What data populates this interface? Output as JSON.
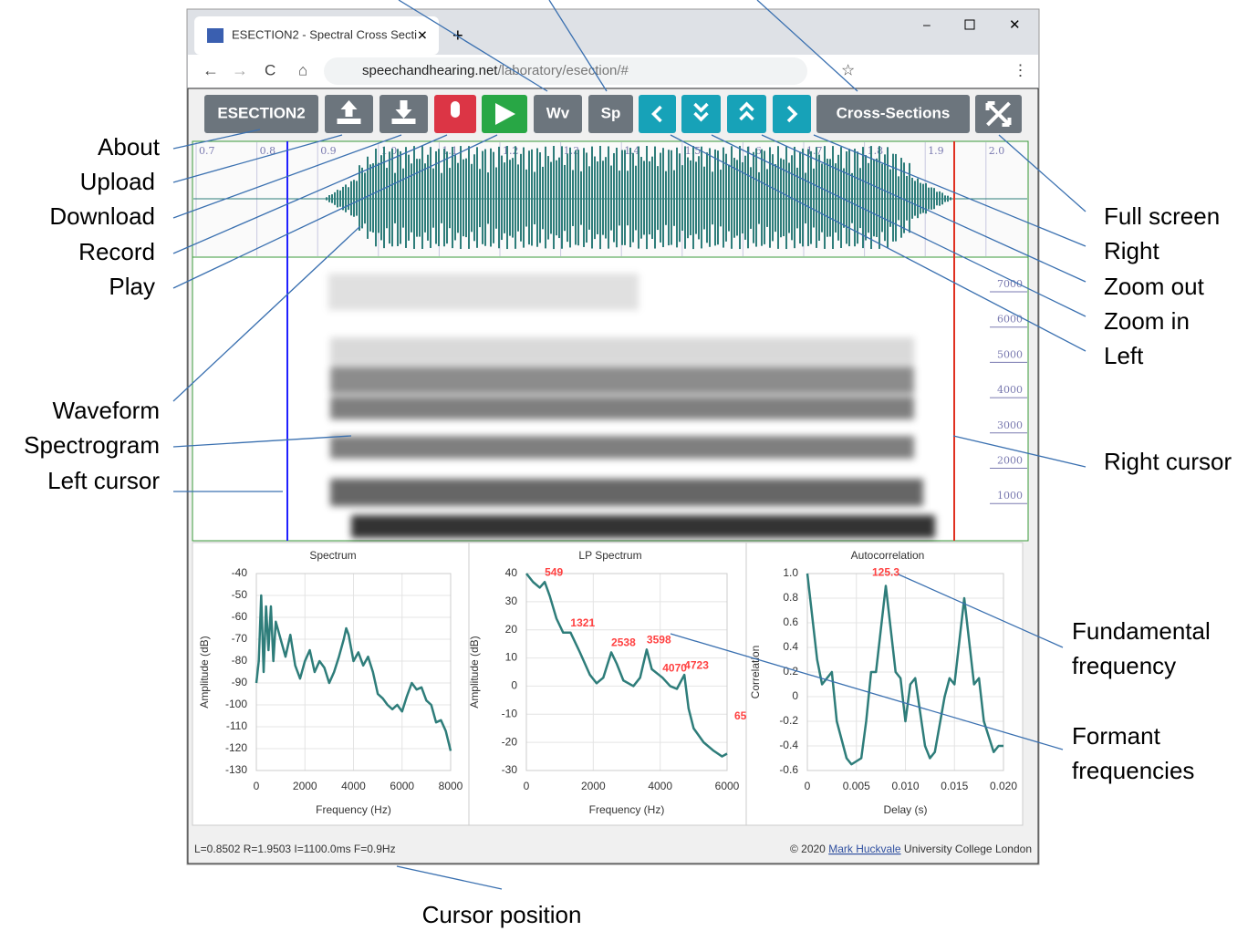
{
  "browser": {
    "tab_title": "ESECTION2 - Spectral Cross Secti",
    "url_host": "speechandhearing.net",
    "url_path": "/laboratory/esection/#"
  },
  "toolbar": {
    "app": "ESECTION2",
    "waveform": "Wv",
    "spectrogram": "Sp",
    "cross_sections": "Cross-Sections"
  },
  "waveform": {
    "time_ticks": [
      "0.7",
      "0.8",
      "0.9",
      "1.0",
      "1.1",
      "1.2",
      "1.3",
      "1.4",
      "1.5",
      "1.6",
      "1.7",
      "1.8",
      "1.9",
      "2.0"
    ]
  },
  "spectrogram": {
    "freq_ticks": [
      "7000",
      "6000",
      "5000",
      "4000",
      "3000",
      "2000",
      "1000"
    ]
  },
  "charts": [
    {
      "type": "line",
      "title": "Spectrum",
      "x_label": "Frequency (Hz)",
      "y_label": "Amplitude (dB)",
      "color": "#2e7d7a",
      "xlim": [
        0,
        8000
      ],
      "ylim": [
        -130,
        -40
      ],
      "xticks": [
        0,
        2000,
        4000,
        6000,
        8000
      ],
      "yticks": [
        -40,
        -50,
        -60,
        -70,
        -80,
        -90,
        -100,
        -110,
        -120,
        -130
      ],
      "x": [
        0,
        100,
        200,
        300,
        400,
        500,
        600,
        700,
        800,
        1000,
        1200,
        1400,
        1600,
        1800,
        2000,
        2200,
        2400,
        2600,
        2800,
        3000,
        3200,
        3400,
        3600,
        3700,
        3800,
        4000,
        4200,
        4400,
        4600,
        4800,
        5000,
        5200,
        5400,
        5600,
        5800,
        6000,
        6200,
        6400,
        6600,
        6800,
        7000,
        7200,
        7400,
        7600,
        7800,
        8000
      ],
      "values": [
        -90,
        -80,
        -50,
        -85,
        -55,
        -75,
        -55,
        -80,
        -62,
        -70,
        -78,
        -68,
        -82,
        -88,
        -80,
        -75,
        -85,
        -80,
        -83,
        -90,
        -85,
        -78,
        -70,
        -65,
        -68,
        -80,
        -76,
        -82,
        -78,
        -85,
        -95,
        -97,
        -100,
        -102,
        -100,
        -103,
        -96,
        -90,
        -93,
        -92,
        -98,
        -100,
        -108,
        -107,
        -112,
        -121
      ]
    },
    {
      "type": "line",
      "title": "LP Spectrum",
      "x_label": "Frequency (Hz)",
      "y_label": "Amplitude (dB)",
      "color": "#2e7d7a",
      "xlim": [
        0,
        6000
      ],
      "ylim": [
        -30,
        40
      ],
      "xticks": [
        0,
        2000,
        4000,
        6000
      ],
      "yticks": [
        40,
        30,
        20,
        10,
        0,
        -10,
        -20,
        -30
      ],
      "x": [
        0,
        200,
        400,
        549,
        700,
        900,
        1100,
        1321,
        1600,
        1900,
        2100,
        2300,
        2538,
        2700,
        2900,
        3200,
        3400,
        3598,
        3750,
        4070,
        4300,
        4500,
        4723,
        4850,
        5000,
        5300,
        5600,
        5850,
        6000
      ],
      "values": [
        40,
        37,
        35,
        37,
        32,
        24,
        19,
        19,
        12,
        4,
        1,
        3,
        12,
        8,
        2,
        0,
        3,
        13,
        6,
        3,
        0,
        -1,
        4,
        -8,
        -15,
        -20,
        -23,
        -25,
        -24
      ],
      "peaks": [
        {
          "x": 549,
          "y": 37
        },
        {
          "x": 1321,
          "y": 19
        },
        {
          "x": 2538,
          "y": 12
        },
        {
          "x": 3598,
          "y": 13
        },
        {
          "x": 4070,
          "y": 3
        },
        {
          "x": 4723,
          "y": 4
        }
      ],
      "clipped_label": "65"
    },
    {
      "type": "line",
      "title": "Autocorrelation",
      "x_label": "Delay (s)",
      "y_label": "Correlation",
      "color": "#2e7d7a",
      "xlim": [
        0,
        0.02
      ],
      "ylim": [
        -0.6,
        1
      ],
      "xticks": [
        0,
        0.005,
        {
          "value": 0.01,
          "label": "0.010"
        },
        0.015,
        {
          "value": 0.02,
          "label": "0.020"
        }
      ],
      "yticks": [
        {
          "value": 1,
          "label": "1.0"
        },
        0.8,
        0.6,
        0.4,
        0.2,
        0,
        -0.2,
        -0.4,
        -0.6
      ],
      "x": [
        0,
        0.001,
        0.0015,
        0.0025,
        0.003,
        0.004,
        0.0045,
        0.0055,
        0.006,
        0.0065,
        0.007,
        0.008,
        0.009,
        0.0095,
        0.01,
        0.0105,
        0.011,
        0.012,
        0.0125,
        0.013,
        0.014,
        0.0145,
        0.015,
        0.016,
        0.017,
        0.0175,
        0.018,
        0.019,
        0.0195,
        0.02
      ],
      "values": [
        1,
        0.3,
        0.1,
        0.2,
        -0.2,
        -0.5,
        -0.55,
        -0.5,
        -0.2,
        0.2,
        0.2,
        0.9,
        0.2,
        0.15,
        -0.2,
        0.1,
        0.15,
        -0.4,
        -0.5,
        -0.45,
        0,
        0.15,
        0.1,
        0.8,
        0.1,
        0.15,
        -0.2,
        -0.45,
        -0.4,
        -0.4
      ],
      "f0_label": {
        "x": 0.008,
        "y": 0.9,
        "label": "125.3"
      }
    }
  ],
  "status": {
    "cursor": "L=0.8502 R=1.9503 I=1100.0ms F=0.9Hz",
    "copyright": "© 2020",
    "author": "Mark Huckvale",
    "institution": "University College London"
  },
  "annotations": [
    {
      "text": "About"
    },
    {
      "text": "Upload"
    },
    {
      "text": "Download"
    },
    {
      "text": "Record"
    },
    {
      "text": "Play"
    },
    {
      "text": "Waveform"
    },
    {
      "text": "Spectrogram"
    },
    {
      "text": "Left cursor"
    },
    {
      "text": "Full screen"
    },
    {
      "text": "Right"
    },
    {
      "text": "Zoom out"
    },
    {
      "text": "Zoom in"
    },
    {
      "text": "Left"
    },
    {
      "text": "Right cursor"
    },
    {
      "text": "Fundamental"
    },
    {
      "text": "frequency"
    },
    {
      "text": "Formant"
    },
    {
      "text": "frequencies"
    },
    {
      "text": "Cursor position"
    }
  ]
}
